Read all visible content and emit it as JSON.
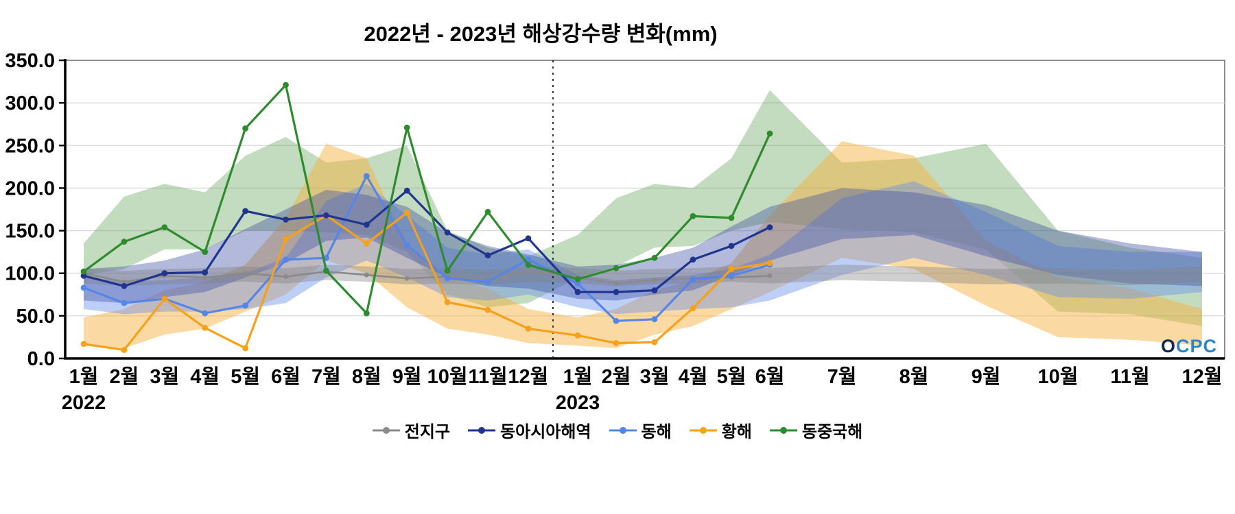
{
  "chart_data": {
    "type": "line",
    "title": "2022년 - 2023년 해상강수량 변화(mm)",
    "ylim": [
      0,
      350
    ],
    "grid": true,
    "legend_position": "bottom",
    "watermark": "OCPC",
    "y_ticks": [
      "0.0",
      "50.0",
      "100.0",
      "150.0",
      "200.0",
      "250.0",
      "300.0",
      "350.0"
    ],
    "x_categories": [
      "1월",
      "2월",
      "3월",
      "4월",
      "5월",
      "6월",
      "7월",
      "8월",
      "9월",
      "10월",
      "11월",
      "12월",
      "1월",
      "2월",
      "3월",
      "4월",
      "5월",
      "6월",
      "7월",
      "8월",
      "9월",
      "10월",
      "11월",
      "12월"
    ],
    "year_labels": [
      {
        "text": "2022",
        "index": 0
      },
      {
        "text": "2023",
        "index": 12
      }
    ],
    "separator_after_index": 11,
    "band_order": [
      4,
      3,
      2,
      1,
      0
    ],
    "line_order": [
      0,
      2,
      3,
      1,
      4
    ],
    "series": [
      {
        "name": "전지구",
        "color": "#8a8a8a",
        "band_color": "rgba(130,130,130,0.38)",
        "values": [
          100,
          90,
          97,
          95,
          100,
          96,
          102,
          98,
          94,
          96,
          93,
          102,
          95,
          88,
          92,
          94,
          95,
          97
        ],
        "band_low": [
          88,
          85,
          87,
          88,
          90,
          88,
          92,
          90,
          87,
          88,
          86,
          90,
          88,
          85,
          87,
          88,
          90,
          88,
          92,
          90,
          87,
          88,
          86,
          90
        ],
        "band_high": [
          106,
          103,
          105,
          106,
          108,
          106,
          110,
          108,
          105,
          106,
          104,
          108,
          106,
          103,
          105,
          106,
          108,
          106,
          110,
          108,
          105,
          106,
          104,
          108
        ]
      },
      {
        "name": "동아시아해역",
        "color": "#203590",
        "band_color": "rgba(62,80,162,0.40)",
        "values": [
          97,
          85,
          100,
          101,
          173,
          163,
          168,
          157,
          197,
          148,
          121,
          141,
          78,
          78,
          80,
          116,
          132,
          154
        ],
        "band_low": [
          68,
          65,
          72,
          78,
          95,
          112,
          138,
          142,
          118,
          95,
          85,
          82,
          70,
          68,
          75,
          80,
          98,
          115,
          140,
          145,
          120,
          98,
          88,
          85
        ],
        "band_high": [
          105,
          108,
          115,
          128,
          152,
          175,
          198,
          192,
          178,
          148,
          132,
          122,
          108,
          110,
          118,
          130,
          155,
          178,
          200,
          195,
          180,
          150,
          135,
          125
        ]
      },
      {
        "name": "동해",
        "color": "#5585e8",
        "band_color": "rgba(100,140,235,0.42)",
        "values": [
          83,
          65,
          70,
          53,
          62,
          116,
          118,
          214,
          133,
          94,
          90,
          116,
          88,
          44,
          46,
          93,
          97,
          110
        ],
        "band_low": [
          58,
          52,
          55,
          55,
          58,
          65,
          95,
          115,
          95,
          72,
          68,
          75,
          60,
          52,
          55,
          58,
          60,
          68,
          98,
          118,
          98,
          72,
          70,
          78
        ],
        "band_high": [
          95,
          90,
          92,
          95,
          100,
          118,
          185,
          205,
          168,
          130,
          122,
          128,
          98,
          92,
          95,
          98,
          105,
          122,
          188,
          208,
          172,
          132,
          125,
          125
        ]
      },
      {
        "name": "황해",
        "color": "#f5a11c",
        "band_color": "rgba(246,176,60,0.48)",
        "values": [
          17,
          10,
          70,
          36,
          12,
          140,
          168,
          135,
          171,
          66,
          57,
          35,
          27,
          18,
          19,
          59,
          105,
          112
        ],
        "band_low": [
          15,
          12,
          28,
          35,
          55,
          75,
          115,
          100,
          60,
          35,
          28,
          18,
          15,
          12,
          28,
          38,
          58,
          78,
          118,
          105,
          62,
          25,
          22,
          15
        ],
        "band_high": [
          48,
          58,
          80,
          90,
          110,
          165,
          252,
          235,
          135,
          95,
          82,
          58,
          48,
          58,
          80,
          92,
          112,
          168,
          255,
          238,
          138,
          95,
          82,
          58
        ]
      },
      {
        "name": "동중국해",
        "color": "#2e8b2e",
        "band_color": "rgba(88,158,78,0.36)",
        "values": [
          102,
          137,
          154,
          125,
          270,
          321,
          103,
          53,
          271,
          103,
          172,
          110,
          93,
          106,
          118,
          167,
          165,
          264
        ],
        "band_low": [
          98,
          105,
          128,
          128,
          150,
          150,
          148,
          145,
          125,
          75,
          60,
          65,
          95,
          108,
          130,
          132,
          150,
          160,
          152,
          148,
          128,
          55,
          52,
          38
        ],
        "band_high": [
          135,
          190,
          205,
          195,
          238,
          260,
          230,
          235,
          250,
          150,
          130,
          120,
          145,
          188,
          205,
          200,
          235,
          315,
          230,
          235,
          252,
          150,
          130,
          118
        ]
      }
    ]
  }
}
